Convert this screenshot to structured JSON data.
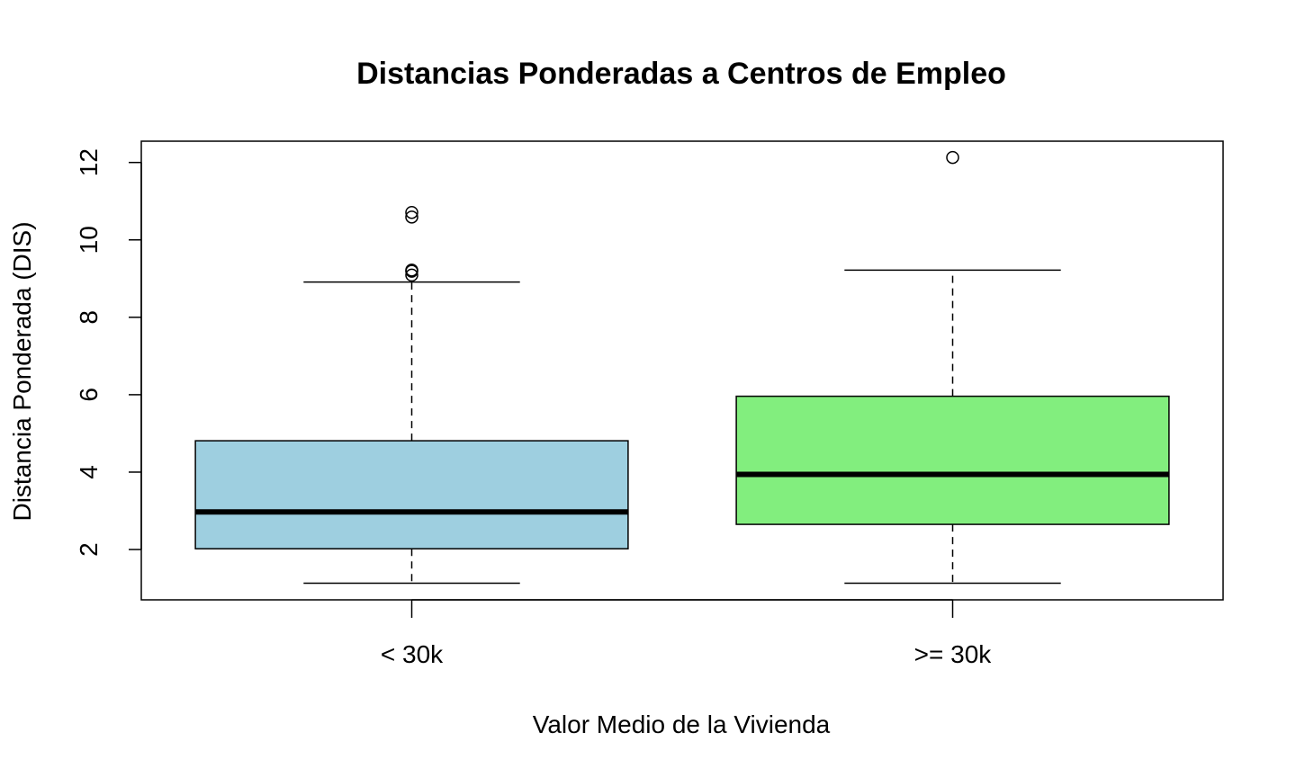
{
  "chart_data": {
    "type": "boxplot",
    "title": "Distancias Ponderadas a Centros de Empleo",
    "xlabel": "Valor Medio de la Vivienda",
    "ylabel": "Distancia Ponderada (DIS)",
    "ylim": [
      0.7,
      12.55
    ],
    "y_ticks": [
      "2",
      "4",
      "6",
      "8",
      "10",
      "12"
    ],
    "grid": false,
    "legend": "none",
    "categories": [
      "< 30k",
      ">= 30k"
    ],
    "boxes": [
      {
        "category": "< 30k",
        "whisker_low": 1.13,
        "q1": 2.02,
        "median": 2.97,
        "q3": 4.81,
        "whisker_high": 8.91,
        "outliers": [
          9.09,
          9.19,
          9.22,
          10.59,
          10.71
        ],
        "color": "#9ecfe0"
      },
      {
        "category": ">= 30k",
        "whisker_low": 1.13,
        "q1": 2.65,
        "median": 3.94,
        "q3": 5.96,
        "whisker_high": 9.22,
        "outliers": [
          12.13
        ],
        "color": "#82ee7e"
      }
    ]
  }
}
